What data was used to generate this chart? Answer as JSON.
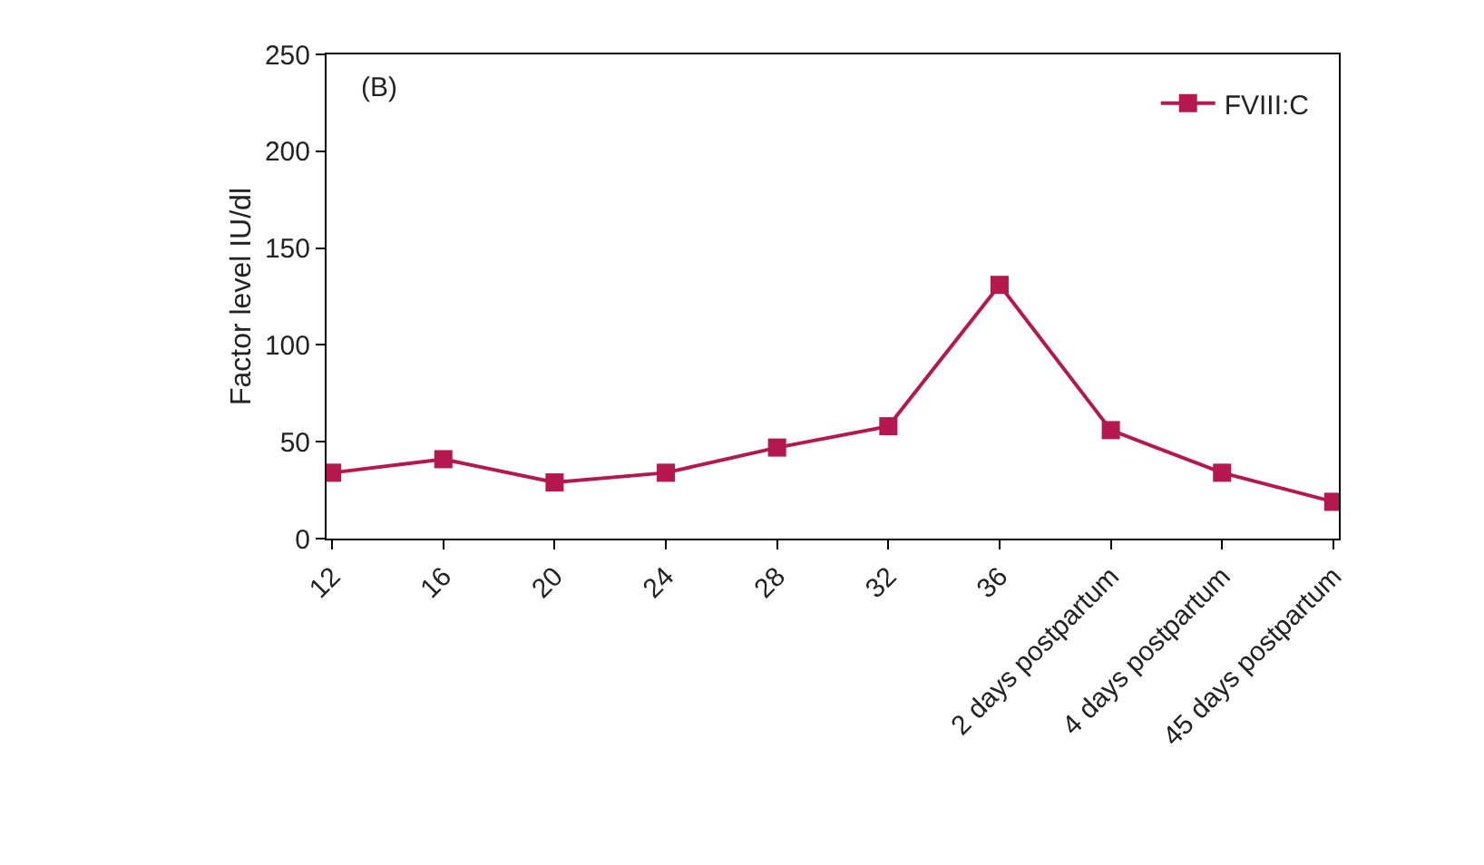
{
  "chart_data": {
    "type": "line",
    "ylabel": "Factor level IU/dl",
    "annotations": [
      "(B)"
    ],
    "categories": [
      "12",
      "16",
      "20",
      "24",
      "28",
      "32",
      "36",
      "2 days postpartum",
      "4 days postpartum",
      "45 days postpartum"
    ],
    "series": [
      {
        "name": "FVIII:C",
        "color": "#b5174f",
        "values": [
          34,
          41,
          29,
          34,
          47,
          58,
          131,
          56,
          34,
          19
        ]
      }
    ],
    "ylim": [
      0,
      250
    ],
    "yticks": [
      0,
      50,
      100,
      150,
      200,
      250
    ],
    "grid": false,
    "legend": "top right",
    "marker": "square",
    "line_style": "solid"
  }
}
